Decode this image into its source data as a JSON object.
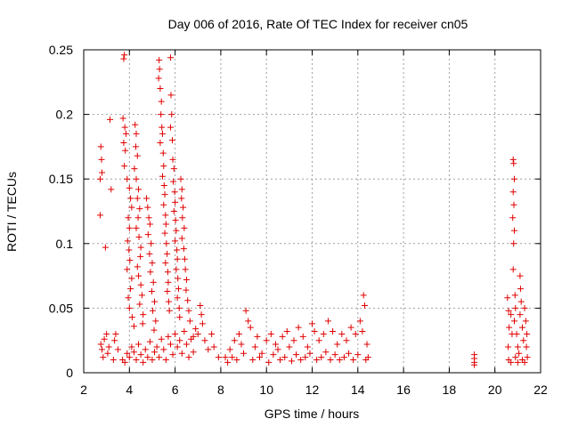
{
  "chart_data": {
    "type": "scatter",
    "title": "Day 006 of 2016, Rate Of TEC Index for receiver cn05",
    "xlabel": "GPS time / hours",
    "ylabel": "ROTI / TECUs",
    "xlim": [
      2,
      22
    ],
    "ylim": [
      0,
      0.25
    ],
    "x_ticks": [
      "2",
      "4",
      "6",
      "8",
      "10",
      "12",
      "14",
      "16",
      "18",
      "20",
      "22"
    ],
    "y_ticks": [
      "0",
      "0.05",
      "0.1",
      "0.15",
      "0.2",
      "0.25"
    ],
    "grid": true,
    "marker": "+",
    "marker_color": "#e00000",
    "series": [
      {
        "name": "ROTI",
        "points": [
          [
            2.72,
            0.15
          ],
          [
            2.75,
            0.175
          ],
          [
            2.78,
            0.165
          ],
          [
            2.8,
            0.155
          ],
          [
            2.72,
            0.122
          ],
          [
            2.95,
            0.097
          ],
          [
            2.75,
            0.022
          ],
          [
            2.8,
            0.018
          ],
          [
            2.85,
            0.012
          ],
          [
            2.9,
            0.026
          ],
          [
            3.0,
            0.03
          ],
          [
            3.05,
            0.015
          ],
          [
            3.1,
            0.02
          ],
          [
            3.2,
            0.142
          ],
          [
            3.15,
            0.196
          ],
          [
            3.3,
            0.01
          ],
          [
            3.35,
            0.025
          ],
          [
            3.4,
            0.03
          ],
          [
            3.5,
            0.018
          ],
          [
            3.75,
            0.243
          ],
          [
            3.78,
            0.246
          ],
          [
            3.72,
            0.197
          ],
          [
            3.8,
            0.19
          ],
          [
            3.85,
            0.185
          ],
          [
            3.75,
            0.178
          ],
          [
            3.82,
            0.172
          ],
          [
            3.78,
            0.16
          ],
          [
            3.9,
            0.15
          ],
          [
            4.0,
            0.143
          ],
          [
            4.05,
            0.135
          ],
          [
            4.1,
            0.128
          ],
          [
            3.95,
            0.12
          ],
          [
            4.0,
            0.112
          ],
          [
            3.92,
            0.102
          ],
          [
            3.98,
            0.095
          ],
          [
            4.02,
            0.087
          ],
          [
            3.9,
            0.08
          ],
          [
            4.1,
            0.073
          ],
          [
            4.05,
            0.065
          ],
          [
            3.95,
            0.058
          ],
          [
            4.0,
            0.05
          ],
          [
            4.12,
            0.043
          ],
          [
            4.2,
            0.036
          ],
          [
            4.25,
            0.192
          ],
          [
            4.3,
            0.185
          ],
          [
            4.28,
            0.175
          ],
          [
            4.35,
            0.168
          ],
          [
            4.22,
            0.158
          ],
          [
            4.3,
            0.15
          ],
          [
            4.4,
            0.142
          ],
          [
            4.35,
            0.135
          ],
          [
            4.45,
            0.127
          ],
          [
            4.38,
            0.12
          ],
          [
            4.3,
            0.112
          ],
          [
            4.42,
            0.105
          ],
          [
            4.5,
            0.097
          ],
          [
            4.48,
            0.09
          ],
          [
            4.35,
            0.082
          ],
          [
            4.4,
            0.075
          ],
          [
            4.5,
            0.068
          ],
          [
            4.55,
            0.06
          ],
          [
            4.45,
            0.053
          ],
          [
            4.6,
            0.045
          ],
          [
            4.58,
            0.038
          ],
          [
            4.75,
            0.135
          ],
          [
            4.8,
            0.128
          ],
          [
            4.85,
            0.12
          ],
          [
            4.9,
            0.115
          ],
          [
            4.82,
            0.107
          ],
          [
            4.95,
            0.1
          ],
          [
            4.88,
            0.092
          ],
          [
            5.0,
            0.085
          ],
          [
            4.92,
            0.078
          ],
          [
            5.05,
            0.07
          ],
          [
            4.98,
            0.063
          ],
          [
            5.1,
            0.055
          ],
          [
            5.02,
            0.048
          ],
          [
            5.15,
            0.04
          ],
          [
            5.08,
            0.033
          ],
          [
            5.3,
            0.242
          ],
          [
            5.32,
            0.235
          ],
          [
            5.28,
            0.228
          ],
          [
            5.35,
            0.22
          ],
          [
            5.4,
            0.21
          ],
          [
            5.38,
            0.2
          ],
          [
            5.42,
            0.19
          ],
          [
            5.45,
            0.185
          ],
          [
            5.35,
            0.178
          ],
          [
            5.48,
            0.17
          ],
          [
            5.5,
            0.16
          ],
          [
            5.45,
            0.152
          ],
          [
            5.52,
            0.145
          ],
          [
            5.55,
            0.138
          ],
          [
            5.5,
            0.13
          ],
          [
            5.58,
            0.122
          ],
          [
            5.6,
            0.115
          ],
          [
            5.55,
            0.108
          ],
          [
            5.62,
            0.1
          ],
          [
            5.65,
            0.092
          ],
          [
            5.58,
            0.085
          ],
          [
            5.68,
            0.078
          ],
          [
            5.7,
            0.07
          ],
          [
            5.66,
            0.063
          ],
          [
            5.72,
            0.055
          ],
          [
            5.75,
            0.048
          ],
          [
            5.8,
            0.244
          ],
          [
            5.82,
            0.215
          ],
          [
            5.85,
            0.2
          ],
          [
            5.8,
            0.19
          ],
          [
            5.88,
            0.18
          ],
          [
            5.9,
            0.165
          ],
          [
            5.95,
            0.158
          ],
          [
            5.92,
            0.148
          ],
          [
            5.98,
            0.14
          ],
          [
            6.0,
            0.132
          ],
          [
            5.95,
            0.125
          ],
          [
            6.02,
            0.118
          ],
          [
            6.05,
            0.11
          ],
          [
            6.0,
            0.102
          ],
          [
            6.08,
            0.095
          ],
          [
            6.1,
            0.088
          ],
          [
            6.05,
            0.08
          ],
          [
            6.12,
            0.073
          ],
          [
            6.15,
            0.065
          ],
          [
            6.1,
            0.058
          ],
          [
            6.18,
            0.05
          ],
          [
            6.2,
            0.043
          ],
          [
            6.25,
            0.15
          ],
          [
            6.3,
            0.142
          ],
          [
            6.28,
            0.135
          ],
          [
            6.35,
            0.128
          ],
          [
            6.32,
            0.12
          ],
          [
            6.4,
            0.112
          ],
          [
            6.3,
            0.104
          ],
          [
            6.38,
            0.096
          ],
          [
            6.42,
            0.088
          ],
          [
            6.45,
            0.08
          ],
          [
            6.5,
            0.072
          ],
          [
            6.48,
            0.064
          ],
          [
            6.55,
            0.056
          ],
          [
            6.6,
            0.048
          ],
          [
            6.65,
            0.04
          ],
          [
            6.8,
            0.028
          ],
          [
            6.9,
            0.034
          ],
          [
            7.0,
            0.03
          ],
          [
            7.1,
            0.052
          ],
          [
            7.15,
            0.045
          ],
          [
            7.2,
            0.038
          ],
          [
            7.3,
            0.025
          ],
          [
            7.45,
            0.018
          ],
          [
            7.6,
            0.03
          ],
          [
            7.7,
            0.02
          ],
          [
            7.9,
            0.012
          ],
          [
            3.7,
            0.01
          ],
          [
            3.8,
            0.008
          ],
          [
            3.9,
            0.015
          ],
          [
            4.0,
            0.012
          ],
          [
            4.1,
            0.02
          ],
          [
            4.2,
            0.016
          ],
          [
            4.3,
            0.01
          ],
          [
            4.4,
            0.022
          ],
          [
            4.5,
            0.014
          ],
          [
            4.6,
            0.008
          ],
          [
            4.7,
            0.018
          ],
          [
            4.8,
            0.012
          ],
          [
            4.9,
            0.024
          ],
          [
            5.0,
            0.01
          ],
          [
            5.1,
            0.016
          ],
          [
            5.2,
            0.02
          ],
          [
            5.3,
            0.012
          ],
          [
            5.4,
            0.026
          ],
          [
            5.5,
            0.018
          ],
          [
            5.6,
            0.01
          ],
          [
            5.7,
            0.028
          ],
          [
            5.8,
            0.022
          ],
          [
            5.9,
            0.014
          ],
          [
            6.0,
            0.03
          ],
          [
            6.1,
            0.02
          ],
          [
            6.2,
            0.025
          ],
          [
            6.3,
            0.015
          ],
          [
            6.4,
            0.032
          ],
          [
            6.5,
            0.022
          ],
          [
            6.6,
            0.012
          ],
          [
            6.7,
            0.026
          ],
          [
            6.8,
            0.016
          ],
          [
            8.2,
            0.012
          ],
          [
            8.4,
            0.018
          ],
          [
            8.6,
            0.025
          ],
          [
            8.8,
            0.03
          ],
          [
            8.9,
            0.022
          ],
          [
            9.1,
            0.048
          ],
          [
            9.2,
            0.04
          ],
          [
            9.3,
            0.035
          ],
          [
            9.5,
            0.02
          ],
          [
            9.6,
            0.028
          ],
          [
            9.8,
            0.015
          ],
          [
            10.0,
            0.025
          ],
          [
            10.2,
            0.03
          ],
          [
            10.4,
            0.022
          ],
          [
            10.5,
            0.018
          ],
          [
            10.7,
            0.028
          ],
          [
            10.9,
            0.032
          ],
          [
            11.0,
            0.02
          ],
          [
            11.2,
            0.025
          ],
          [
            11.4,
            0.035
          ],
          [
            11.6,
            0.028
          ],
          [
            11.8,
            0.02
          ],
          [
            12.0,
            0.038
          ],
          [
            12.1,
            0.032
          ],
          [
            12.3,
            0.025
          ],
          [
            12.5,
            0.03
          ],
          [
            12.7,
            0.04
          ],
          [
            12.9,
            0.032
          ],
          [
            13.1,
            0.022
          ],
          [
            13.3,
            0.03
          ],
          [
            13.5,
            0.025
          ],
          [
            13.7,
            0.035
          ],
          [
            13.9,
            0.03
          ],
          [
            14.1,
            0.04
          ],
          [
            14.25,
            0.06
          ],
          [
            14.3,
            0.052
          ],
          [
            14.2,
            0.032
          ],
          [
            14.4,
            0.022
          ],
          [
            8.3,
            0.008
          ],
          [
            8.5,
            0.012
          ],
          [
            8.7,
            0.01
          ],
          [
            9.0,
            0.015
          ],
          [
            9.4,
            0.01
          ],
          [
            9.7,
            0.012
          ],
          [
            10.1,
            0.008
          ],
          [
            10.3,
            0.014
          ],
          [
            10.6,
            0.01
          ],
          [
            10.8,
            0.012
          ],
          [
            11.1,
            0.009
          ],
          [
            11.3,
            0.014
          ],
          [
            11.5,
            0.01
          ],
          [
            11.7,
            0.012
          ],
          [
            11.9,
            0.015
          ],
          [
            12.2,
            0.01
          ],
          [
            12.4,
            0.012
          ],
          [
            12.6,
            0.016
          ],
          [
            12.8,
            0.01
          ],
          [
            13.0,
            0.014
          ],
          [
            13.2,
            0.01
          ],
          [
            13.4,
            0.012
          ],
          [
            13.6,
            0.015
          ],
          [
            13.8,
            0.01
          ],
          [
            14.0,
            0.014
          ],
          [
            14.35,
            0.01
          ],
          [
            14.45,
            0.012
          ],
          [
            19.1,
            0.014
          ],
          [
            19.1,
            0.011
          ],
          [
            19.1,
            0.008
          ],
          [
            19.1,
            0.006
          ],
          [
            20.55,
            0.058
          ],
          [
            20.6,
            0.048
          ],
          [
            20.62,
            0.035
          ],
          [
            20.58,
            0.02
          ],
          [
            20.6,
            0.01
          ],
          [
            20.7,
            0.045
          ],
          [
            20.75,
            0.03
          ],
          [
            20.8,
            0.165
          ],
          [
            20.82,
            0.162
          ],
          [
            20.85,
            0.15
          ],
          [
            20.8,
            0.14
          ],
          [
            20.83,
            0.13
          ],
          [
            20.78,
            0.12
          ],
          [
            20.85,
            0.11
          ],
          [
            20.82,
            0.1
          ],
          [
            20.8,
            0.08
          ],
          [
            20.88,
            0.06
          ],
          [
            20.9,
            0.05
          ],
          [
            20.85,
            0.04
          ],
          [
            20.95,
            0.03
          ],
          [
            21.0,
            0.02
          ],
          [
            21.05,
            0.015
          ],
          [
            21.1,
            0.075
          ],
          [
            21.12,
            0.065
          ],
          [
            21.15,
            0.055
          ],
          [
            21.1,
            0.045
          ],
          [
            21.2,
            0.035
          ],
          [
            21.25,
            0.025
          ],
          [
            21.3,
            0.05
          ],
          [
            21.35,
            0.04
          ],
          [
            21.4,
            0.03
          ],
          [
            21.38,
            0.02
          ],
          [
            21.42,
            0.012
          ],
          [
            21.3,
            0.008
          ],
          [
            21.2,
            0.01
          ],
          [
            21.0,
            0.008
          ],
          [
            20.9,
            0.012
          ],
          [
            20.7,
            0.008
          ]
        ]
      }
    ]
  }
}
